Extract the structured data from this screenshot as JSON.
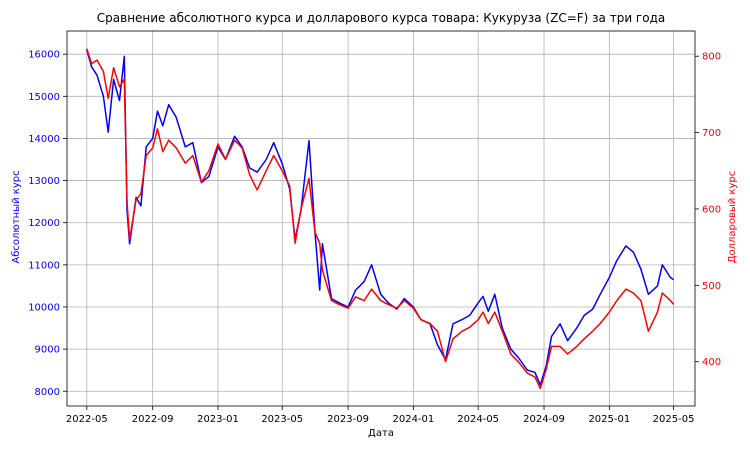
{
  "chart_data": {
    "type": "line",
    "title": "Сравнение абсолютного курса и долларового курса товара: Кукуруза (ZC=F) за три года",
    "xlabel": "Дата",
    "ylabel_left": "Абсолютный курс",
    "ylabel_right": "Долларовый курс",
    "grid": true,
    "x_ticks": [
      "2022-05",
      "2022-09",
      "2023-01",
      "2023-05",
      "2023-09",
      "2024-01",
      "2024-05",
      "2024-09",
      "2025-01",
      "2025-05"
    ],
    "y_left_ticks": [
      "8000",
      "9000",
      "10000",
      "11000",
      "12000",
      "13000",
      "14000",
      "15000",
      "16000"
    ],
    "y_right_ticks": [
      "400",
      "500",
      "600",
      "700",
      "800"
    ],
    "ylim_left": [
      7650,
      16550
    ],
    "ylim_right": [
      342,
      833
    ],
    "series": [
      {
        "axis": "left",
        "color": "#0000ff",
        "points": [
          [
            "2022-05-01",
            16100
          ],
          [
            "2022-05-10",
            15700
          ],
          [
            "2022-05-20",
            15500
          ],
          [
            "2022-06-01",
            15000
          ],
          [
            "2022-06-10",
            14150
          ],
          [
            "2022-06-20",
            15400
          ],
          [
            "2022-07-01",
            14900
          ],
          [
            "2022-07-10",
            15950
          ],
          [
            "2022-07-15",
            12300
          ],
          [
            "2022-07-20",
            11500
          ],
          [
            "2022-08-01",
            12600
          ],
          [
            "2022-08-10",
            12400
          ],
          [
            "2022-08-20",
            13800
          ],
          [
            "2022-09-01",
            14000
          ],
          [
            "2022-09-10",
            14650
          ],
          [
            "2022-09-20",
            14300
          ],
          [
            "2022-10-01",
            14800
          ],
          [
            "2022-10-15",
            14500
          ],
          [
            "2022-11-01",
            13800
          ],
          [
            "2022-11-15",
            13900
          ],
          [
            "2022-12-01",
            12950
          ],
          [
            "2022-12-15",
            13100
          ],
          [
            "2023-01-01",
            13800
          ],
          [
            "2023-01-15",
            13500
          ],
          [
            "2023-02-01",
            14050
          ],
          [
            "2023-02-15",
            13800
          ],
          [
            "2023-03-01",
            13300
          ],
          [
            "2023-03-15",
            13200
          ],
          [
            "2023-04-01",
            13500
          ],
          [
            "2023-04-15",
            13900
          ],
          [
            "2023-05-01",
            13400
          ],
          [
            "2023-05-15",
            12800
          ],
          [
            "2023-05-25",
            11600
          ],
          [
            "2023-06-05",
            12300
          ],
          [
            "2023-06-20",
            13950
          ],
          [
            "2023-07-01",
            11800
          ],
          [
            "2023-07-10",
            10400
          ],
          [
            "2023-07-15",
            11500
          ],
          [
            "2023-08-01",
            10200
          ],
          [
            "2023-08-15",
            10100
          ],
          [
            "2023-09-01",
            10000
          ],
          [
            "2023-09-15",
            10400
          ],
          [
            "2023-10-01",
            10600
          ],
          [
            "2023-10-15",
            11000
          ],
          [
            "2023-11-01",
            10300
          ],
          [
            "2023-11-15",
            10100
          ],
          [
            "2023-12-01",
            9950
          ],
          [
            "2023-12-15",
            10200
          ],
          [
            "2024-01-01",
            10000
          ],
          [
            "2024-01-15",
            9700
          ],
          [
            "2024-02-01",
            9600
          ],
          [
            "2024-02-15",
            9100
          ],
          [
            "2024-03-01",
            8750
          ],
          [
            "2024-03-15",
            9600
          ],
          [
            "2024-04-01",
            9700
          ],
          [
            "2024-04-15",
            9800
          ],
          [
            "2024-05-01",
            10100
          ],
          [
            "2024-05-10",
            10250
          ],
          [
            "2024-05-20",
            9900
          ],
          [
            "2024-06-01",
            10300
          ],
          [
            "2024-06-15",
            9500
          ],
          [
            "2024-07-01",
            9000
          ],
          [
            "2024-07-15",
            8800
          ],
          [
            "2024-08-01",
            8500
          ],
          [
            "2024-08-15",
            8450
          ],
          [
            "2024-08-25",
            8150
          ],
          [
            "2024-09-05",
            8600
          ],
          [
            "2024-09-15",
            9300
          ],
          [
            "2024-10-01",
            9600
          ],
          [
            "2024-10-15",
            9200
          ],
          [
            "2024-11-01",
            9500
          ],
          [
            "2024-11-15",
            9800
          ],
          [
            "2024-12-01",
            9950
          ],
          [
            "2024-12-15",
            10300
          ],
          [
            "2025-01-01",
            10700
          ],
          [
            "2025-01-15",
            11100
          ],
          [
            "2025-02-01",
            11450
          ],
          [
            "2025-02-15",
            11300
          ],
          [
            "2025-03-01",
            10900
          ],
          [
            "2025-03-15",
            10300
          ],
          [
            "2025-04-01",
            10500
          ],
          [
            "2025-04-10",
            11000
          ],
          [
            "2025-04-25",
            10700
          ],
          [
            "2025-05-01",
            10650
          ]
        ]
      },
      {
        "axis": "right",
        "color": "#ff0000",
        "points": [
          [
            "2022-05-01",
            810
          ],
          [
            "2022-05-10",
            790
          ],
          [
            "2022-05-20",
            795
          ],
          [
            "2022-06-01",
            780
          ],
          [
            "2022-06-10",
            745
          ],
          [
            "2022-06-20",
            785
          ],
          [
            "2022-07-01",
            760
          ],
          [
            "2022-07-10",
            770
          ],
          [
            "2022-07-15",
            610
          ],
          [
            "2022-07-20",
            560
          ],
          [
            "2022-08-01",
            612
          ],
          [
            "2022-08-10",
            620
          ],
          [
            "2022-08-20",
            670
          ],
          [
            "2022-09-01",
            680
          ],
          [
            "2022-09-10",
            705
          ],
          [
            "2022-09-20",
            675
          ],
          [
            "2022-10-01",
            690
          ],
          [
            "2022-10-15",
            680
          ],
          [
            "2022-11-01",
            660
          ],
          [
            "2022-11-15",
            670
          ],
          [
            "2022-12-01",
            635
          ],
          [
            "2022-12-15",
            650
          ],
          [
            "2023-01-01",
            685
          ],
          [
            "2023-01-15",
            665
          ],
          [
            "2023-02-01",
            690
          ],
          [
            "2023-02-15",
            680
          ],
          [
            "2023-03-01",
            645
          ],
          [
            "2023-03-15",
            625
          ],
          [
            "2023-04-01",
            650
          ],
          [
            "2023-04-15",
            670
          ],
          [
            "2023-05-01",
            650
          ],
          [
            "2023-05-15",
            630
          ],
          [
            "2023-05-25",
            555
          ],
          [
            "2023-06-05",
            600
          ],
          [
            "2023-06-20",
            640
          ],
          [
            "2023-07-01",
            570
          ],
          [
            "2023-07-10",
            555
          ],
          [
            "2023-07-15",
            520
          ],
          [
            "2023-08-01",
            480
          ],
          [
            "2023-08-15",
            475
          ],
          [
            "2023-09-01",
            470
          ],
          [
            "2023-09-15",
            485
          ],
          [
            "2023-10-01",
            480
          ],
          [
            "2023-10-15",
            495
          ],
          [
            "2023-11-01",
            480
          ],
          [
            "2023-11-15",
            475
          ],
          [
            "2023-12-01",
            470
          ],
          [
            "2023-12-15",
            480
          ],
          [
            "2024-01-01",
            470
          ],
          [
            "2024-01-15",
            455
          ],
          [
            "2024-02-01",
            450
          ],
          [
            "2024-02-15",
            440
          ],
          [
            "2024-03-01",
            400
          ],
          [
            "2024-03-15",
            430
          ],
          [
            "2024-04-01",
            440
          ],
          [
            "2024-04-15",
            445
          ],
          [
            "2024-05-01",
            455
          ],
          [
            "2024-05-10",
            465
          ],
          [
            "2024-05-20",
            450
          ],
          [
            "2024-06-01",
            465
          ],
          [
            "2024-06-15",
            440
          ],
          [
            "2024-07-01",
            410
          ],
          [
            "2024-07-15",
            400
          ],
          [
            "2024-08-01",
            385
          ],
          [
            "2024-08-15",
            380
          ],
          [
            "2024-08-25",
            365
          ],
          [
            "2024-09-05",
            390
          ],
          [
            "2024-09-15",
            420
          ],
          [
            "2024-10-01",
            420
          ],
          [
            "2024-10-15",
            410
          ],
          [
            "2024-11-01",
            420
          ],
          [
            "2024-11-15",
            430
          ],
          [
            "2024-12-01",
            440
          ],
          [
            "2024-12-15",
            450
          ],
          [
            "2025-01-01",
            465
          ],
          [
            "2025-01-15",
            480
          ],
          [
            "2025-02-01",
            495
          ],
          [
            "2025-02-15",
            490
          ],
          [
            "2025-03-01",
            480
          ],
          [
            "2025-03-15",
            440
          ],
          [
            "2025-04-01",
            465
          ],
          [
            "2025-04-10",
            490
          ],
          [
            "2025-04-25",
            480
          ],
          [
            "2025-05-01",
            475
          ]
        ]
      }
    ]
  }
}
